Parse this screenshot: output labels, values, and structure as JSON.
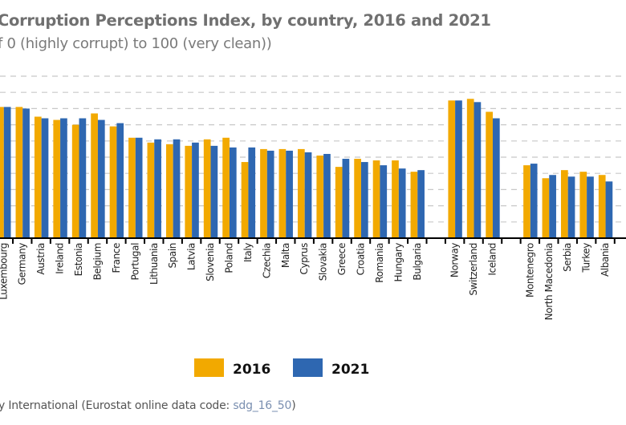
{
  "chart_data": {
    "type": "bar",
    "title": "Corruption Perceptions Index, by country, 2016 and 2021",
    "subtitle": "f 0 (highly corrupt) to 100 (very clean))",
    "ylim": [
      0,
      100
    ],
    "grid": true,
    "legend_placement": "bottom",
    "categories": [
      "Luxembourg",
      "Germany",
      "Austria",
      "Ireland",
      "Estonia",
      "Belgium",
      "France",
      "Portugal",
      "Lithuania",
      "Spain",
      "Latvia",
      "Slovenia",
      "Poland",
      "Italy",
      "Czechia",
      "Malta",
      "Cyprus",
      "Slovakia",
      "Greece",
      "Croatia",
      "Romania",
      "Hungary",
      "Bulgaria",
      "",
      "Norway",
      "Switzerland",
      "Iceland",
      "",
      "Montenegro",
      "North Macedonia",
      "Serbia",
      "Turkey",
      "Albania"
    ],
    "series": [
      {
        "name": "2016",
        "color": "#f2a900",
        "values": [
          81,
          81,
          75,
          73,
          70,
          77,
          69,
          62,
          59,
          58,
          57,
          61,
          62,
          47,
          55,
          55,
          55,
          51,
          44,
          49,
          48,
          48,
          41,
          null,
          85,
          86,
          78,
          null,
          45,
          37,
          42,
          41,
          39
        ]
      },
      {
        "name": "2021",
        "color": "#2e67b1",
        "values": [
          81,
          80,
          74,
          74,
          74,
          73,
          71,
          62,
          61,
          61,
          59,
          57,
          56,
          56,
          54,
          54,
          53,
          52,
          49,
          47,
          45,
          43,
          42,
          null,
          85,
          84,
          74,
          null,
          46,
          39,
          38,
          38,
          35
        ]
      }
    ]
  },
  "source": {
    "text": "y International (Eurostat online data code: ",
    "code": "sdg_16_50",
    "tail": ")"
  }
}
